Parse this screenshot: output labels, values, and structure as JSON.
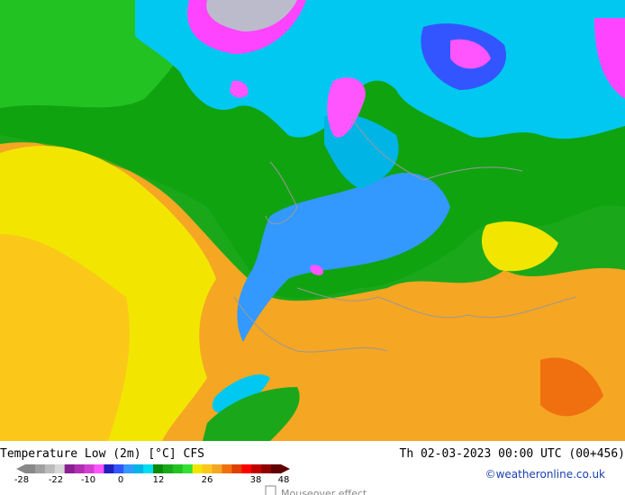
{
  "title": "Temperature Low (2m) [°C] CFS",
  "datetime": "Th 02-03-2023 00:00 UTC (00+456)",
  "credit": "©weatheronline.co.uk",
  "legend": {
    "ticks": [
      "-28",
      "-22",
      "-10",
      "0",
      "12",
      "26",
      "38",
      "48"
    ]
  },
  "mouseover": "Mouseover effect"
}
